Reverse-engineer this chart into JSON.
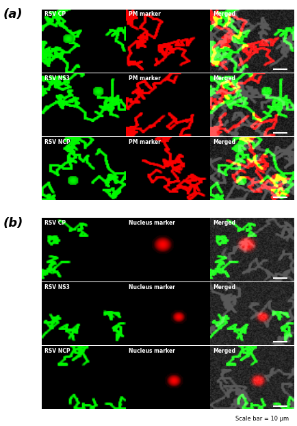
{
  "fig_width": 4.35,
  "fig_height": 6.22,
  "dpi": 100,
  "bg_color": "#ffffff",
  "panel_a_label": "(a)",
  "panel_b_label": "(b)",
  "scale_bar_text": "Scale bar = 10 μm",
  "rows_a": [
    {
      "col0": "RSV CP",
      "col1": "PM marker",
      "col2": "Merged"
    },
    {
      "col0": "RSV NS3",
      "col1": "PM marker",
      "col2": "Merged"
    },
    {
      "col0": "RSV NCP",
      "col1": "PM marker",
      "col2": "Merged"
    }
  ],
  "rows_b": [
    {
      "col0": "RSV CP",
      "col1": "Nucleus marker",
      "col2": "Merged"
    },
    {
      "col0": "RSV NS3",
      "col1": "Nucleus marker",
      "col2": "Merged"
    },
    {
      "col0": "RSV NCP",
      "col1": "Nucleus marker",
      "col2": "Merged"
    }
  ],
  "label_color": "#ffffff",
  "label_fontsize": 5.5,
  "panel_label_fontsize": 13,
  "panel_label_fontweight": "bold"
}
